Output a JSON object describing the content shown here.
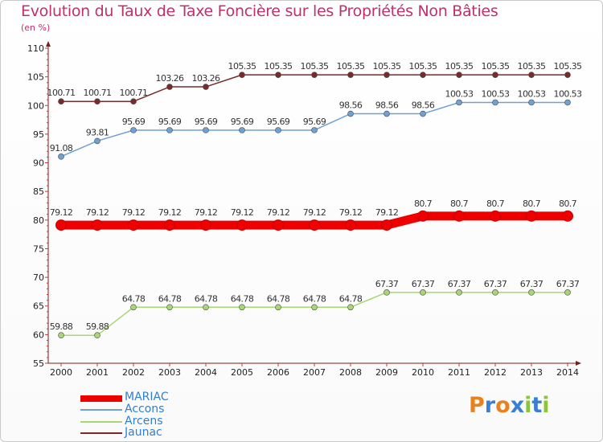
{
  "title": "Evolution du Taux de Taxe Foncière sur les Propriétés Non Bâties",
  "subtitle": "(en %)",
  "logo": {
    "letters": [
      "P",
      "r",
      "o",
      "x",
      "i",
      "t",
      "i"
    ],
    "colors": [
      "#e8811f",
      "#3a7fd6",
      "#e8811f",
      "#3a7fd6",
      "#8cc43b",
      "#3a7fd6",
      "#8cc43b"
    ]
  },
  "chart_data": {
    "type": "line",
    "title": "Evolution du Taux de Taxe Foncière sur les Propriétés Non Bâties",
    "ylabel": "(en %)",
    "xlabel": "",
    "x": [
      "2000",
      "2001",
      "2002",
      "2003",
      "2004",
      "2005",
      "2006",
      "2007",
      "2008",
      "2009",
      "2010",
      "2011",
      "2012",
      "2013",
      "2014"
    ],
    "ylim": [
      55,
      110
    ],
    "yticks": [
      "55",
      "60",
      "65",
      "70",
      "75",
      "80",
      "85",
      "90",
      "95",
      "100",
      "105",
      "110"
    ],
    "grid": false,
    "legend_position": "bottom-left",
    "series": [
      {
        "name": "MARIAC",
        "color": "#ee0000",
        "values": [
          79.12,
          79.12,
          79.12,
          79.12,
          79.12,
          79.12,
          79.12,
          79.12,
          79.12,
          79.12,
          80.7,
          80.7,
          80.7,
          80.7,
          80.7
        ],
        "labels": [
          "79.12",
          "79.12",
          "79.12",
          "79.12",
          "79.12",
          "79.12",
          "79.12",
          "79.12",
          "79.12",
          "79.12",
          "80.7",
          "80.7",
          "80.7",
          "80.7",
          "80.7"
        ]
      },
      {
        "name": "Accons",
        "color": "#6fa1d4",
        "values": [
          91.08,
          93.81,
          95.69,
          95.69,
          95.69,
          95.69,
          95.69,
          95.69,
          98.56,
          98.56,
          98.56,
          100.53,
          100.53,
          100.53,
          100.53
        ],
        "labels": [
          "91.08",
          "93.81",
          "95.69",
          "95.69",
          "95.69",
          "95.69",
          "95.69",
          "95.69",
          "98.56",
          "98.56",
          "98.56",
          "100.53",
          "100.53",
          "100.53",
          "100.53"
        ]
      },
      {
        "name": "Arcens",
        "color": "#a6d774",
        "values": [
          59.88,
          59.88,
          64.78,
          64.78,
          64.78,
          64.78,
          64.78,
          64.78,
          64.78,
          67.37,
          67.37,
          67.37,
          67.37,
          67.37,
          67.37
        ],
        "labels": [
          "59.88",
          "59.88",
          "64.78",
          "64.78",
          "64.78",
          "64.78",
          "64.78",
          "64.78",
          "64.78",
          "67.37",
          "67.37",
          "67.37",
          "67.37",
          "67.37",
          "67.37"
        ]
      },
      {
        "name": "Jaunac",
        "color": "#7b2a2a",
        "values": [
          100.71,
          100.71,
          100.71,
          103.26,
          103.26,
          105.35,
          105.35,
          105.35,
          105.35,
          105.35,
          105.35,
          105.35,
          105.35,
          105.35,
          105.35
        ],
        "labels": [
          "100.71",
          "100.71",
          "100.71",
          "103.26",
          "103.26",
          "105.35",
          "105.35",
          "105.35",
          "105.35",
          "105.35",
          "105.35",
          "105.35",
          "105.35",
          "105.35",
          "105.35"
        ]
      }
    ]
  }
}
